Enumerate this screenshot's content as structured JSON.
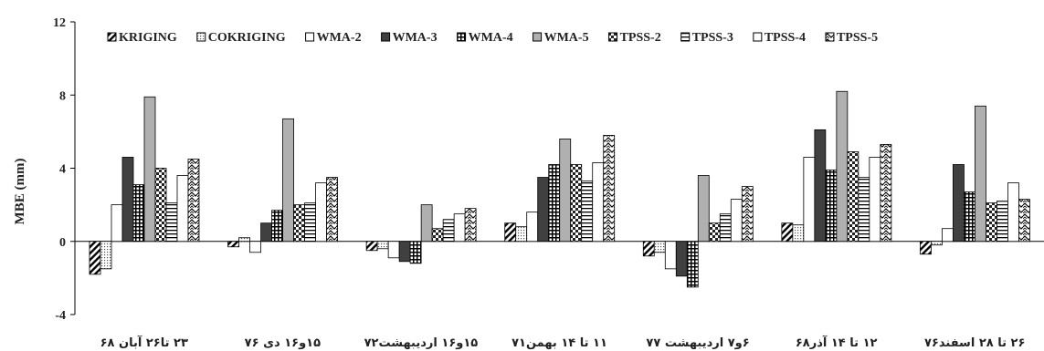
{
  "chart_data": {
    "type": "bar",
    "ylabel": "MBE (mm)",
    "ylim": [
      -4,
      12
    ],
    "yticks": [
      -4,
      0,
      4,
      8,
      12
    ],
    "grid": false,
    "legend_position": "top",
    "categories": [
      "۲۳ تا۲۶ آبان ۶۸",
      "۱۵و۱۶ دی ۷۶",
      "۱۵و۱۶ اردیبهشت۷۲",
      "۱۱ تا ۱۴ بهمن۷۱",
      "۶و۷ اردیبهشت ۷۷",
      "۱۲ تا ۱۴ آذر۶۸",
      "۲۶ تا ۲۸ اسفند۷۶"
    ],
    "series": [
      {
        "name": "KRIGING",
        "pattern": "diag",
        "values": [
          -1.8,
          -0.3,
          -0.5,
          1.0,
          -0.8,
          1.0,
          -0.7
        ]
      },
      {
        "name": "COKRIGING",
        "pattern": "dots",
        "values": [
          -1.5,
          0.2,
          -0.4,
          0.8,
          -0.6,
          0.9,
          -0.2
        ]
      },
      {
        "name": "WMA-2",
        "pattern": "white",
        "values": [
          2.0,
          -0.6,
          -0.9,
          1.6,
          -1.5,
          4.6,
          0.7
        ]
      },
      {
        "name": "WMA-3",
        "pattern": "dark",
        "values": [
          4.6,
          1.0,
          -1.1,
          3.5,
          -1.9,
          6.1,
          4.2
        ]
      },
      {
        "name": "WMA-4",
        "pattern": "grid",
        "values": [
          3.1,
          1.7,
          -1.2,
          4.2,
          -2.5,
          3.9,
          2.7
        ]
      },
      {
        "name": "WMA-5",
        "pattern": "gray",
        "values": [
          7.9,
          6.7,
          2.0,
          5.6,
          3.6,
          8.2,
          7.4
        ]
      },
      {
        "name": "TPSS-2",
        "pattern": "check",
        "values": [
          4.0,
          2.0,
          0.7,
          4.2,
          1.0,
          4.9,
          2.1
        ]
      },
      {
        "name": "TPSS-3",
        "pattern": "hline",
        "values": [
          2.1,
          2.1,
          1.2,
          3.3,
          1.5,
          3.5,
          2.2
        ]
      },
      {
        "name": "TPSS-4",
        "pattern": "white",
        "values": [
          3.6,
          3.2,
          1.5,
          4.3,
          2.3,
          4.6,
          3.2
        ]
      },
      {
        "name": "TPSS-5",
        "pattern": "wave",
        "values": [
          4.5,
          3.5,
          1.8,
          5.8,
          3.0,
          5.3,
          2.3
        ]
      }
    ]
  }
}
